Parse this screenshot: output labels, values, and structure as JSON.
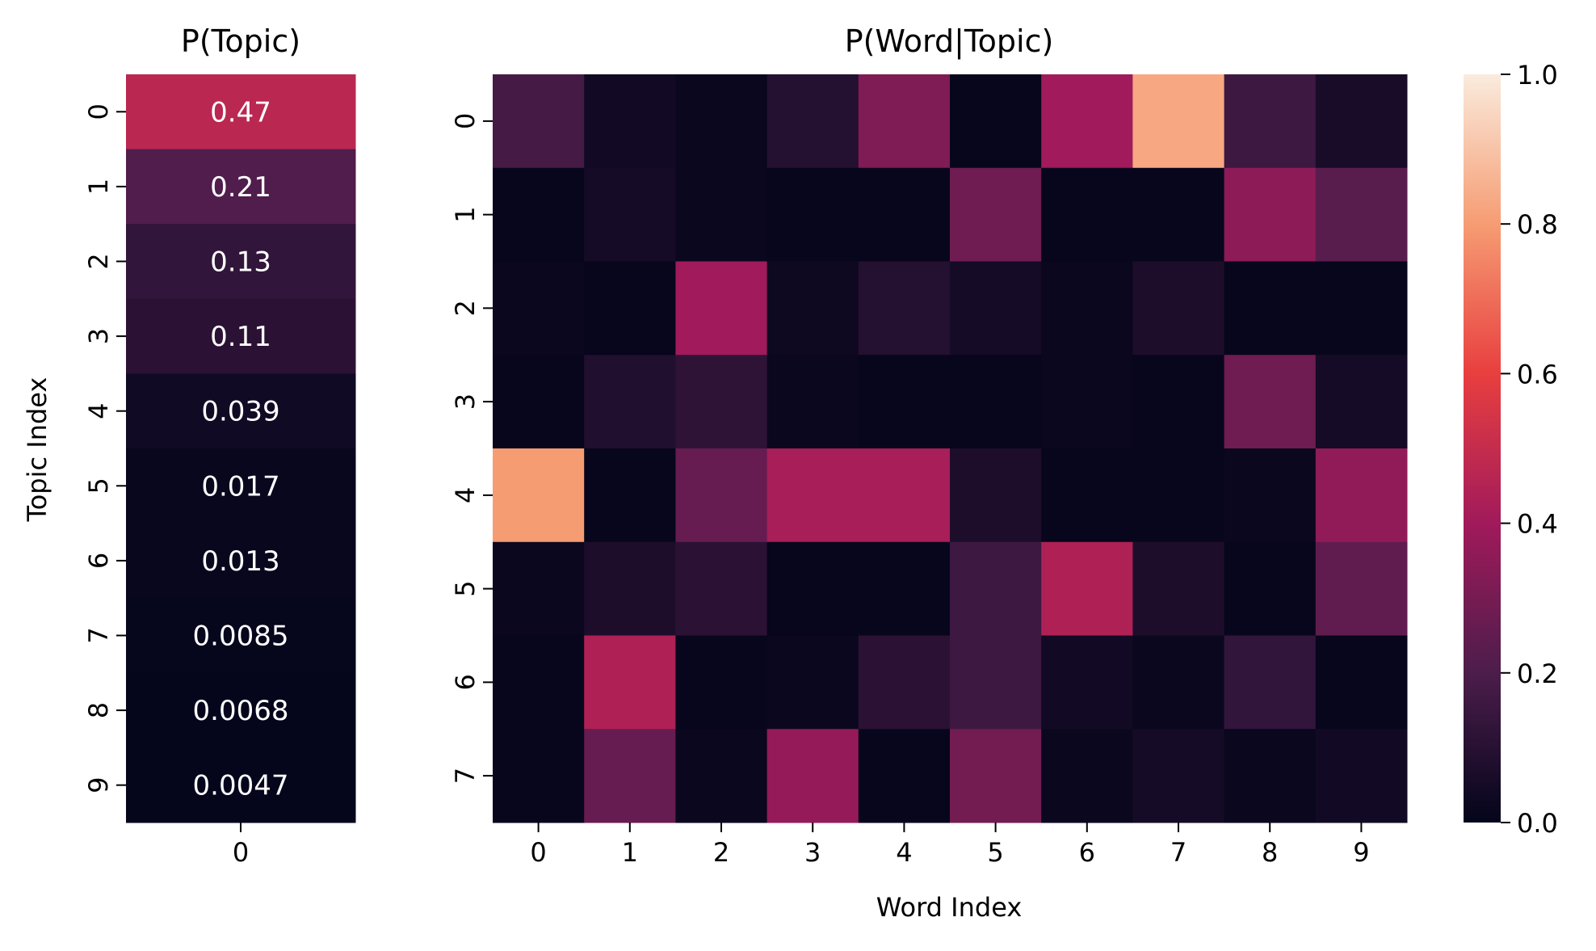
{
  "chart_data": [
    {
      "type": "heatmap",
      "title": "P(Topic)",
      "xlabel": "",
      "ylabel": "Topic Index",
      "x_tick_labels": [
        "0"
      ],
      "y_tick_labels": [
        "0",
        "1",
        "2",
        "3",
        "4",
        "5",
        "6",
        "7",
        "8",
        "9"
      ],
      "values": [
        [
          0.47
        ],
        [
          0.21
        ],
        [
          0.13
        ],
        [
          0.11
        ],
        [
          0.039
        ],
        [
          0.017
        ],
        [
          0.013
        ],
        [
          0.0085
        ],
        [
          0.0068
        ],
        [
          0.0047
        ]
      ],
      "cell_labels": [
        "0.47",
        "0.21",
        "0.13",
        "0.11",
        "0.039",
        "0.017",
        "0.013",
        "0.0085",
        "0.0068",
        "0.0047"
      ],
      "annotated": true
    },
    {
      "type": "heatmap",
      "title": "P(Word|Topic)",
      "xlabel": "Word Index",
      "ylabel": "",
      "x_tick_labels": [
        "0",
        "1",
        "2",
        "3",
        "4",
        "5",
        "6",
        "7",
        "8",
        "9"
      ],
      "y_tick_labels": [
        "0",
        "1",
        "2",
        "3",
        "4",
        "5",
        "6",
        "7"
      ],
      "values": [
        [
          0.18,
          0.04,
          0.02,
          0.09,
          0.32,
          0.01,
          0.4,
          0.83,
          0.16,
          0.06
        ],
        [
          0.01,
          0.05,
          0.02,
          0.01,
          0.01,
          0.28,
          0.01,
          0.01,
          0.35,
          0.23
        ],
        [
          0.02,
          0.01,
          0.4,
          0.03,
          0.09,
          0.05,
          0.02,
          0.07,
          0.01,
          0.01
        ],
        [
          0.01,
          0.08,
          0.12,
          0.02,
          0.01,
          0.01,
          0.02,
          0.01,
          0.28,
          0.05
        ],
        [
          0.8,
          0.01,
          0.26,
          0.42,
          0.42,
          0.07,
          0.01,
          0.01,
          0.02,
          0.36
        ],
        [
          0.02,
          0.07,
          0.11,
          0.01,
          0.01,
          0.16,
          0.44,
          0.07,
          0.01,
          0.25
        ],
        [
          0.01,
          0.44,
          0.01,
          0.02,
          0.11,
          0.16,
          0.04,
          0.02,
          0.13,
          0.01
        ],
        [
          0.01,
          0.26,
          0.02,
          0.37,
          0.01,
          0.29,
          0.02,
          0.05,
          0.02,
          0.04
        ]
      ],
      "annotated": false
    }
  ],
  "colorbar": {
    "range": [
      0.0,
      1.0
    ],
    "ticks": [
      "0.0",
      "0.2",
      "0.4",
      "0.6",
      "0.8",
      "1.0"
    ]
  },
  "colormap": {
    "name": "rocket",
    "stops": [
      "#03051a",
      "#4c1d4b",
      "#a11a5b",
      "#e83f3f",
      "#f69c73",
      "#faebdd"
    ]
  }
}
